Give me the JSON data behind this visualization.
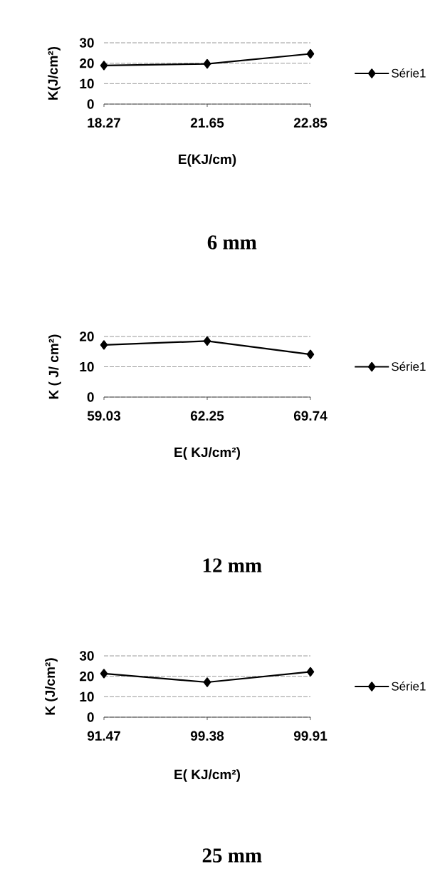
{
  "chart_data": [
    {
      "type": "line",
      "categories": [
        "18.27",
        "21.65",
        "22.85"
      ],
      "series": [
        {
          "name": "Série1",
          "color": "#000000",
          "values": [
            18.9,
            19.7,
            24.6
          ]
        }
      ],
      "xlabel": "E(KJ/cm)",
      "ylabel": "K(J/cm²)",
      "ylim": [
        0,
        30
      ],
      "yticks": [
        0,
        10,
        20,
        30
      ],
      "grid": "y",
      "legend": "right",
      "marker": "diamond",
      "line_style": "solid",
      "annotations": [
        "6 mm"
      ]
    },
    {
      "type": "line",
      "categories": [
        "59.03",
        "62.25",
        "69.74"
      ],
      "series": [
        {
          "name": "Série1",
          "color": "#000000",
          "values": [
            17.2,
            18.5,
            14.1
          ]
        }
      ],
      "xlabel": "E( KJ/cm²)",
      "ylabel": "K ( J/ cm²)",
      "ylim": [
        0,
        20
      ],
      "yticks": [
        0,
        10,
        20
      ],
      "grid": "y",
      "legend": "right",
      "marker": "diamond",
      "line_style": "solid",
      "annotations": [
        "12 mm"
      ]
    },
    {
      "type": "line",
      "categories": [
        "91.47",
        "99.38",
        "99.91"
      ],
      "series": [
        {
          "name": "Série1",
          "color": "#000000",
          "values": [
            21.3,
            17.1,
            22.2
          ]
        }
      ],
      "xlabel": "E( KJ/cm²)",
      "ylabel": "K (J/cm²)",
      "ylim": [
        0,
        30
      ],
      "yticks": [
        0,
        10,
        20,
        30
      ],
      "grid": "y",
      "legend": "right",
      "marker": "diamond",
      "line_style": "solid",
      "annotations": [
        "25 mm"
      ]
    }
  ]
}
